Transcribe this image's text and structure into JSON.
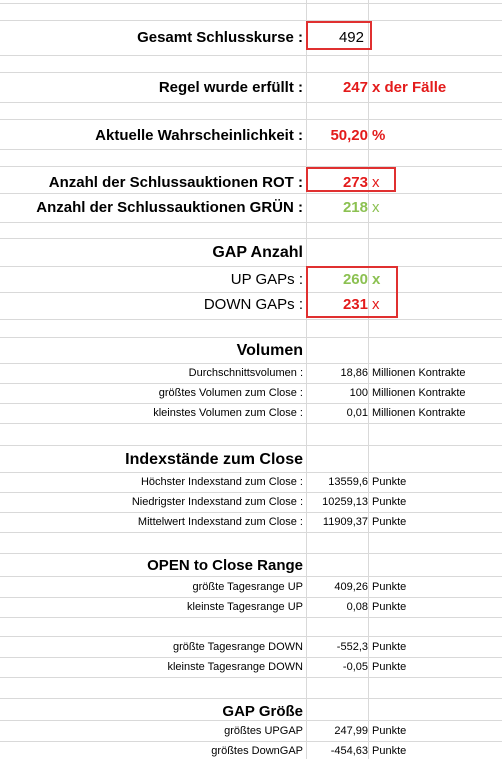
{
  "summary": {
    "total_label": "Gesamt Schlusskurse :",
    "total_value": "492",
    "rule_label": "Regel wurde erfüllt :",
    "rule_value": "247",
    "rule_unit": "x der Fälle",
    "prob_label": "Aktuelle Wahrscheinlichkeit :",
    "prob_value": "50,20",
    "prob_unit": "%",
    "red_label": "Anzahl der Schlussauktionen ROT :",
    "red_value": "273",
    "red_unit": "x",
    "green_label": "Anzahl der Schlussauktionen GRÜN :",
    "green_value": "218",
    "green_unit": "x"
  },
  "gap_count": {
    "title": "GAP Anzahl",
    "up_label": "UP GAPs :",
    "up_value": "260",
    "up_unit": "x",
    "down_label": "DOWN GAPs :",
    "down_value": "231",
    "down_unit": "x"
  },
  "volume": {
    "title": "Volumen",
    "rows": [
      {
        "label": "Durchschnittsvolumen :",
        "value": "18,86",
        "unit": "Millionen Kontrakte"
      },
      {
        "label": "größtes Volumen zum Close :",
        "value": "100",
        "unit": "Millionen Kontrakte"
      },
      {
        "label": "kleinstes Volumen zum Close :",
        "value": "0,01",
        "unit": "Millionen Kontrakte"
      }
    ]
  },
  "index": {
    "title": "Indexstände zum Close",
    "rows": [
      {
        "label": "Höchster Indexstand zum Close :",
        "value": "13559,6",
        "unit": "Punkte"
      },
      {
        "label": "Niedrigster Indexstand zum Close :",
        "value": "10259,13",
        "unit": "Punkte"
      },
      {
        "label": "Mittelwert Indexstand zum Close  :",
        "value": "11909,37",
        "unit": "Punkte"
      }
    ]
  },
  "range": {
    "title": "OPEN to Close Range",
    "rows": [
      {
        "label": "größte Tagesrange UP",
        "value": "409,26",
        "unit": "Punkte"
      },
      {
        "label": "kleinste Tagesrange UP",
        "value": "0,08",
        "unit": "Punkte"
      },
      {
        "label": "größte Tagesrange DOWN",
        "value": "-552,3",
        "unit": "Punkte"
      },
      {
        "label": "kleinste Tagesrange DOWN",
        "value": "-0,05",
        "unit": "Punkte"
      }
    ]
  },
  "gap_size": {
    "title": "GAP Größe",
    "rows": [
      {
        "label": "größtes UPGAP",
        "value": "247,99",
        "unit": "Punkte"
      },
      {
        "label": "größtes DownGAP",
        "value": "-454,63",
        "unit": "Punkte"
      }
    ]
  },
  "colors": {
    "red": "#e31b1b",
    "green": "#8cc152",
    "box_border": "#e03030",
    "grid": "#d9d9d9"
  }
}
